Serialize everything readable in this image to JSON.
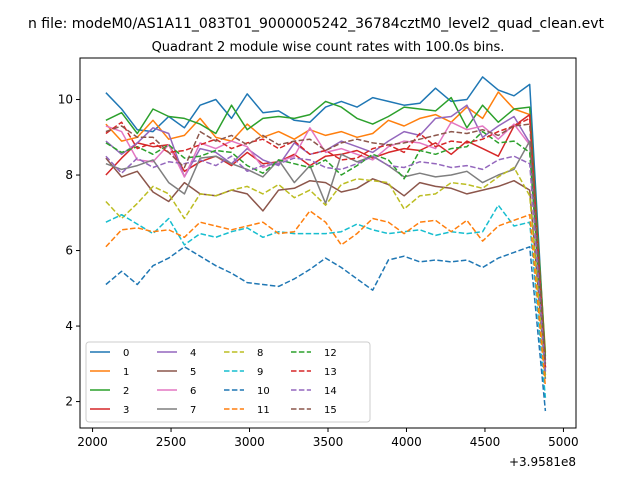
{
  "suptitle": "n file: modeM0/AS1A11_083T01_9000005242_36784cztM0_level2_quad_clean.evt",
  "chart_data": {
    "type": "line",
    "title": "Quadrant 2 module wise count rates with 100.0s bins.",
    "xlabel": "",
    "ylabel": "",
    "x_offset_label": "+3.9581e8",
    "xlim": [
      1920,
      5080
    ],
    "ylim": [
      1.3,
      11.1
    ],
    "xticks": [
      2000,
      2500,
      3000,
      3500,
      4000,
      4500,
      5000
    ],
    "yticks": [
      2,
      4,
      6,
      8,
      10
    ],
    "legend_position": "lower-left",
    "grid": false,
    "x": [
      2085,
      2185,
      2285,
      2385,
      2485,
      2585,
      2685,
      2785,
      2885,
      2985,
      3085,
      3185,
      3285,
      3385,
      3485,
      3585,
      3685,
      3785,
      3885,
      3985,
      4085,
      4185,
      4285,
      4385,
      4485,
      4585,
      4685,
      4785,
      4885
    ],
    "series": [
      {
        "name": "0",
        "color": "#1f77b4",
        "style": "solid",
        "values": [
          10.18,
          9.75,
          9.2,
          9.15,
          9.55,
          9.25,
          9.85,
          10.0,
          9.5,
          10.15,
          9.65,
          9.7,
          9.45,
          9.4,
          9.8,
          9.95,
          9.8,
          10.05,
          9.95,
          9.85,
          9.9,
          10.3,
          9.95,
          10.0,
          10.6,
          10.25,
          10.1,
          10.4,
          3.1
        ]
      },
      {
        "name": "1",
        "color": "#ff7f0e",
        "style": "solid",
        "values": [
          9.35,
          8.9,
          9.0,
          9.45,
          8.95,
          9.05,
          9.5,
          9.0,
          8.9,
          9.35,
          9.0,
          9.15,
          8.95,
          9.2,
          9.05,
          9.15,
          9.0,
          9.1,
          9.45,
          9.3,
          9.5,
          9.6,
          9.4,
          9.8,
          9.5,
          10.2,
          9.75,
          9.6,
          3.3
        ]
      },
      {
        "name": "2",
        "color": "#2ca02c",
        "style": "solid",
        "values": [
          9.45,
          9.65,
          9.1,
          9.75,
          9.55,
          9.5,
          9.35,
          9.1,
          9.85,
          9.2,
          9.5,
          9.55,
          9.5,
          9.6,
          9.95,
          9.8,
          9.5,
          9.35,
          9.55,
          9.8,
          9.75,
          9.7,
          10.05,
          9.25,
          9.85,
          9.4,
          9.75,
          9.8,
          3.2
        ]
      },
      {
        "name": "3",
        "color": "#d62728",
        "style": "solid",
        "values": [
          8.0,
          8.45,
          8.85,
          8.75,
          8.8,
          8.1,
          8.35,
          8.5,
          8.25,
          8.6,
          8.3,
          8.35,
          8.55,
          8.25,
          8.5,
          8.55,
          8.65,
          8.45,
          8.6,
          8.7,
          8.65,
          8.85,
          8.55,
          8.9,
          8.7,
          8.5,
          9.3,
          9.6,
          2.9
        ]
      },
      {
        "name": "4",
        "color": "#9467bd",
        "style": "solid",
        "values": [
          8.9,
          8.55,
          8.85,
          9.25,
          9.1,
          7.95,
          8.7,
          8.6,
          8.3,
          8.7,
          8.4,
          8.25,
          8.85,
          8.55,
          8.65,
          8.9,
          8.75,
          8.6,
          8.9,
          9.15,
          9.05,
          9.5,
          9.55,
          9.85,
          9.0,
          9.3,
          9.55,
          8.85,
          2.8
        ]
      },
      {
        "name": "5",
        "color": "#8c564b",
        "style": "solid",
        "values": [
          8.45,
          7.95,
          8.1,
          7.55,
          7.3,
          7.8,
          7.5,
          7.45,
          7.6,
          7.5,
          7.05,
          7.6,
          7.65,
          7.85,
          7.8,
          7.55,
          7.65,
          7.9,
          7.75,
          7.45,
          7.8,
          7.7,
          7.65,
          7.5,
          7.6,
          7.7,
          7.85,
          7.6,
          2.7
        ]
      },
      {
        "name": "6",
        "color": "#e377c2",
        "style": "solid",
        "values": [
          9.3,
          9.15,
          8.4,
          8.35,
          8.8,
          7.95,
          8.85,
          8.7,
          8.9,
          8.75,
          8.2,
          8.35,
          8.5,
          9.25,
          8.6,
          8.7,
          8.55,
          8.4,
          8.75,
          8.9,
          8.85,
          8.7,
          9.4,
          9.2,
          9.3,
          8.95,
          9.35,
          8.8,
          2.9
        ]
      },
      {
        "name": "7",
        "color": "#7f7f7f",
        "style": "solid",
        "values": [
          8.3,
          8.15,
          8.25,
          8.4,
          7.8,
          7.5,
          8.45,
          8.5,
          8.3,
          8.15,
          7.95,
          8.4,
          7.8,
          8.25,
          7.25,
          8.55,
          8.35,
          8.5,
          8.25,
          7.95,
          8.05,
          7.95,
          8.0,
          8.1,
          7.8,
          8.0,
          8.15,
          8.9,
          2.6
        ]
      },
      {
        "name": "8",
        "color": "#bcbd22",
        "style": "dashed",
        "values": [
          7.3,
          6.85,
          7.25,
          7.7,
          7.5,
          6.85,
          7.5,
          7.45,
          7.6,
          7.7,
          7.5,
          7.75,
          7.4,
          7.6,
          7.2,
          7.75,
          7.9,
          7.85,
          7.8,
          7.1,
          7.45,
          7.5,
          7.8,
          7.75,
          7.65,
          7.95,
          8.2,
          7.45,
          2.6
        ]
      },
      {
        "name": "9",
        "color": "#17becf",
        "style": "dashed",
        "values": [
          6.75,
          6.95,
          6.7,
          6.45,
          6.85,
          6.15,
          6.45,
          6.35,
          6.5,
          6.6,
          6.35,
          6.5,
          6.45,
          6.45,
          6.45,
          6.5,
          6.7,
          6.55,
          6.45,
          6.5,
          6.55,
          6.4,
          6.5,
          6.45,
          6.5,
          7.2,
          6.65,
          6.75,
          2.1
        ]
      },
      {
        "name": "10",
        "color": "#1f77b4",
        "style": "dashed",
        "values": [
          5.1,
          5.45,
          5.1,
          5.6,
          5.8,
          6.1,
          5.85,
          5.6,
          5.4,
          5.15,
          5.1,
          5.05,
          5.25,
          5.5,
          5.8,
          5.55,
          5.25,
          4.95,
          5.75,
          5.85,
          5.7,
          5.75,
          5.7,
          5.75,
          5.55,
          5.8,
          5.95,
          6.1,
          1.75
        ]
      },
      {
        "name": "11",
        "color": "#ff7f0e",
        "style": "dashed",
        "values": [
          6.1,
          6.55,
          6.6,
          6.5,
          6.55,
          6.35,
          6.75,
          6.65,
          6.55,
          6.65,
          6.75,
          6.45,
          6.5,
          7.05,
          6.75,
          6.15,
          6.45,
          6.85,
          6.75,
          6.45,
          6.75,
          6.8,
          6.5,
          6.8,
          6.25,
          6.65,
          6.8,
          6.95,
          2.4
        ]
      },
      {
        "name": "12",
        "color": "#2ca02c",
        "style": "dashed",
        "values": [
          8.85,
          8.6,
          8.75,
          8.55,
          8.8,
          8.45,
          8.5,
          8.65,
          8.6,
          8.25,
          8.05,
          8.4,
          8.3,
          8.2,
          8.4,
          8.0,
          8.25,
          8.55,
          8.4,
          7.9,
          8.65,
          8.55,
          8.7,
          8.75,
          9.15,
          8.85,
          8.9,
          8.6,
          2.9
        ]
      },
      {
        "name": "13",
        "color": "#d62728",
        "style": "dashed",
        "values": [
          9.1,
          9.4,
          8.7,
          8.85,
          8.6,
          8.65,
          8.8,
          8.95,
          8.7,
          8.85,
          8.95,
          8.7,
          8.9,
          8.55,
          8.65,
          8.4,
          8.45,
          8.7,
          8.8,
          8.6,
          9.1,
          8.75,
          8.9,
          8.85,
          8.95,
          9.15,
          9.3,
          9.5,
          2.9
        ]
      },
      {
        "name": "14",
        "color": "#9467bd",
        "style": "dashed",
        "values": [
          8.5,
          8.05,
          8.45,
          8.2,
          8.35,
          8.3,
          8.4,
          8.25,
          8.5,
          8.1,
          8.25,
          8.3,
          8.45,
          8.4,
          8.2,
          8.15,
          8.3,
          8.5,
          8.25,
          8.2,
          8.35,
          8.3,
          8.2,
          8.25,
          8.15,
          8.4,
          8.5,
          8.3,
          2.8
        ]
      },
      {
        "name": "15",
        "color": "#8c564b",
        "style": "dashed",
        "values": [
          9.15,
          9.3,
          9.0,
          9.0,
          8.6,
          8.2,
          9.15,
          8.9,
          9.05,
          8.8,
          9.05,
          8.8,
          8.9,
          8.95,
          8.65,
          8.85,
          8.95,
          8.85,
          8.8,
          8.85,
          8.95,
          9.05,
          9.15,
          9.1,
          9.2,
          9.05,
          9.3,
          9.35,
          3.0
        ]
      }
    ]
  }
}
